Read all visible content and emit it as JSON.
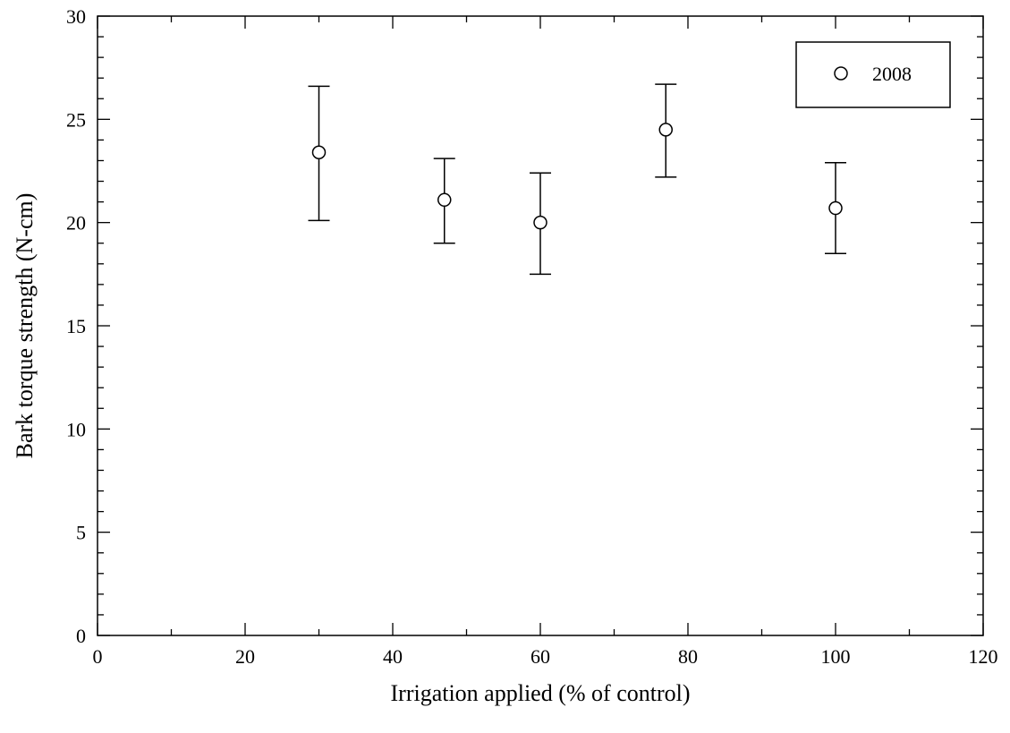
{
  "chart_data": {
    "type": "scatter",
    "title": "",
    "xlabel": "Irrigation applied (% of control)",
    "ylabel": "Bark torque strength (N-cm)",
    "xlim": [
      0,
      120
    ],
    "ylim": [
      0,
      30
    ],
    "x_ticks": [
      0,
      20,
      40,
      60,
      80,
      100,
      120
    ],
    "y_ticks": [
      0,
      5,
      10,
      15,
      20,
      25,
      30
    ],
    "x_minor_step": 10,
    "y_minor_step": 1,
    "grid": false,
    "legend_position": "top-right",
    "series": [
      {
        "name": "2008",
        "marker": "open-circle",
        "color": "#000000",
        "points": [
          {
            "x": 30,
            "y": 23.4,
            "err_low": 20.1,
            "err_high": 26.6
          },
          {
            "x": 47,
            "y": 21.1,
            "err_low": 19.0,
            "err_high": 23.1
          },
          {
            "x": 60,
            "y": 20.0,
            "err_low": 17.5,
            "err_high": 22.4
          },
          {
            "x": 77,
            "y": 24.5,
            "err_low": 22.2,
            "err_high": 26.7
          },
          {
            "x": 100,
            "y": 20.7,
            "err_low": 18.5,
            "err_high": 22.9
          }
        ]
      }
    ]
  }
}
